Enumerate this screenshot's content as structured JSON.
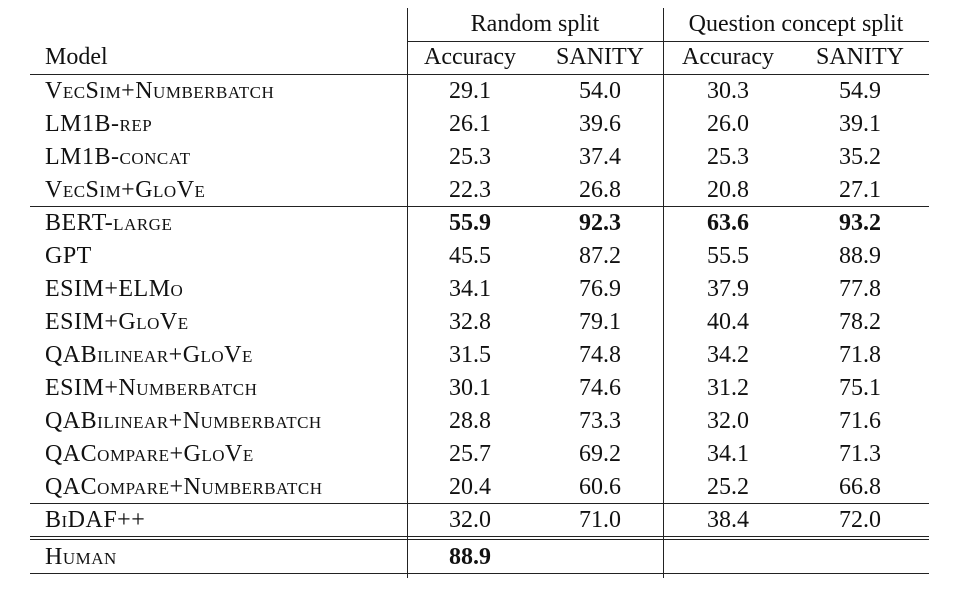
{
  "table": {
    "group_headers": [
      "Random split",
      "Question concept split"
    ],
    "column_headers": [
      "Model",
      "Accuracy",
      "SANITY",
      "Accuracy",
      "SANITY"
    ],
    "sections": [
      [
        {
          "model": "VecSim+Numberbatch",
          "values": [
            "29.1",
            "54.0",
            "30.3",
            "54.9"
          ]
        },
        {
          "model": "LM1B-rep",
          "values": [
            "26.1",
            "39.6",
            "26.0",
            "39.1"
          ]
        },
        {
          "model": "LM1B-concat",
          "values": [
            "25.3",
            "37.4",
            "25.3",
            "35.2"
          ]
        },
        {
          "model": "VecSim+GloVe",
          "values": [
            "22.3",
            "26.8",
            "20.8",
            "27.1"
          ]
        }
      ],
      [
        {
          "model": "BERT-large",
          "values": [
            "55.9",
            "92.3",
            "63.6",
            "93.2"
          ],
          "bold": true
        },
        {
          "model": "GPT",
          "values": [
            "45.5",
            "87.2",
            "55.5",
            "88.9"
          ]
        },
        {
          "model": "ESIM+ELMo",
          "values": [
            "34.1",
            "76.9",
            "37.9",
            "77.8"
          ]
        },
        {
          "model": "ESIM+GloVe",
          "values": [
            "32.8",
            "79.1",
            "40.4",
            "78.2"
          ]
        },
        {
          "model": "QABilinear+GloVe",
          "values": [
            "31.5",
            "74.8",
            "34.2",
            "71.8"
          ]
        },
        {
          "model": "ESIM+Numberbatch",
          "values": [
            "30.1",
            "74.6",
            "31.2",
            "75.1"
          ]
        },
        {
          "model": "QABilinear+Numberbatch",
          "values": [
            "28.8",
            "73.3",
            "32.0",
            "71.6"
          ]
        },
        {
          "model": "QACompare+GloVe",
          "values": [
            "25.7",
            "69.2",
            "34.1",
            "71.3"
          ]
        },
        {
          "model": "QACompare+Numberbatch",
          "values": [
            "20.4",
            "60.6",
            "25.2",
            "66.8"
          ]
        }
      ],
      [
        {
          "model": "BiDAF++",
          "values": [
            "32.0",
            "71.0",
            "38.4",
            "72.0"
          ]
        }
      ],
      [
        {
          "model": "Human",
          "values": [
            "88.9"
          ],
          "bold": true
        }
      ]
    ]
  }
}
